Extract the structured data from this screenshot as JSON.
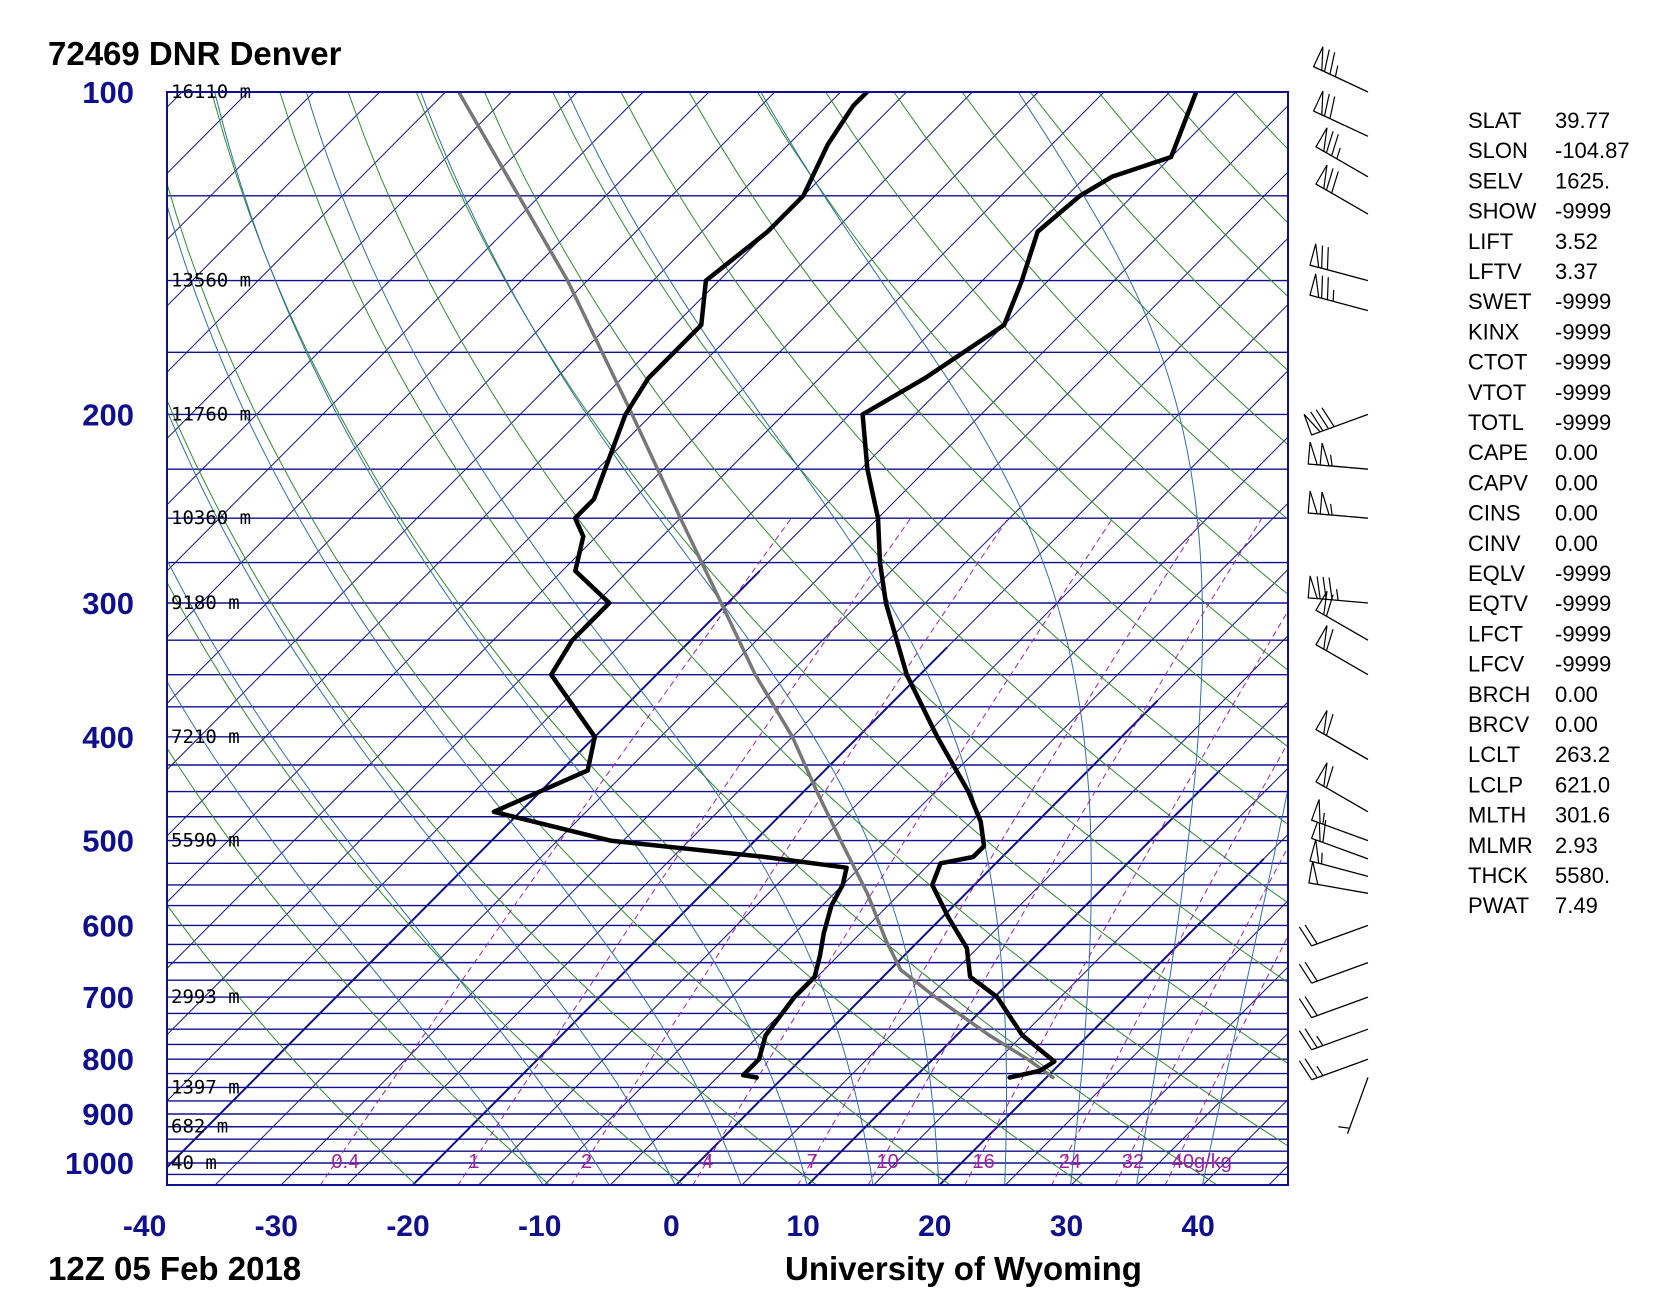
{
  "header": {
    "station": "72469 DNR Denver",
    "time": "12Z 05 Feb 2018",
    "source": "University of Wyoming"
  },
  "colors": {
    "isobar": "#10108c",
    "isotherm": "#10108c",
    "dry_adiabat": "#2e8b2e",
    "moist_adiabat": "#2f6fa8",
    "mixing_ratio": "#a020a0",
    "temperature": "#000000",
    "dewpoint": "#000000",
    "parcel": "#777777"
  },
  "chart_data": {
    "type": "skew-t log-p sounding",
    "title": "72469 DNR Denver",
    "subtitle": "12Z 05 Feb 2018",
    "xlim": [
      -40,
      45
    ],
    "ylim": [
      1050,
      100
    ],
    "y_scale": "log",
    "pressure_ticks": [
      100,
      200,
      300,
      400,
      500,
      600,
      700,
      800,
      900,
      1000
    ],
    "temperature_ticks": [
      -40,
      -30,
      -20,
      -10,
      0,
      10,
      20,
      30,
      40
    ],
    "height_labels": [
      {
        "p": 100,
        "label": "16110 m"
      },
      {
        "p": 150,
        "label": "13560 m"
      },
      {
        "p": 200,
        "label": "11760 m"
      },
      {
        "p": 250,
        "label": "10360 m"
      },
      {
        "p": 300,
        "label": "9180 m"
      },
      {
        "p": 400,
        "label": "7210 m"
      },
      {
        "p": 500,
        "label": "5590 m"
      },
      {
        "p": 700,
        "label": "2993 m"
      },
      {
        "p": 850,
        "label": "1397 m"
      },
      {
        "p": 925,
        "label": "682 m"
      },
      {
        "p": 1000,
        "label": "40 m"
      }
    ],
    "mixing_ratio_labels": [
      "0.4",
      "1",
      "2",
      "4",
      "7",
      "10",
      "16",
      "24",
      "32",
      "40g/kg"
    ],
    "mixing_ratio_values": [
      0.4,
      1,
      2,
      4,
      7,
      10,
      16,
      24,
      32,
      40
    ],
    "temperature_profile": [
      {
        "p": 832,
        "t": 17.2
      },
      {
        "p": 820,
        "t": 19.0
      },
      {
        "p": 804,
        "t": 19.4
      },
      {
        "p": 760,
        "t": 15.0
      },
      {
        "p": 700,
        "t": 10.2
      },
      {
        "p": 670,
        "t": 6.6
      },
      {
        "p": 630,
        "t": 4.2
      },
      {
        "p": 590,
        "t": 0.5
      },
      {
        "p": 550,
        "t": -3.2
      },
      {
        "p": 525,
        "t": -4.2
      },
      {
        "p": 518,
        "t": -2.2
      },
      {
        "p": 506,
        "t": -2.2
      },
      {
        "p": 480,
        "t": -4.3
      },
      {
        "p": 450,
        "t": -7.5
      },
      {
        "p": 400,
        "t": -14.0
      },
      {
        "p": 350,
        "t": -21.0
      },
      {
        "p": 300,
        "t": -28.0
      },
      {
        "p": 275,
        "t": -31.5
      },
      {
        "p": 250,
        "t": -35.0
      },
      {
        "p": 225,
        "t": -39.5
      },
      {
        "p": 200,
        "t": -44.0
      },
      {
        "p": 185,
        "t": -42.0
      },
      {
        "p": 170,
        "t": -40.5
      },
      {
        "p": 165,
        "t": -40.0
      },
      {
        "p": 150,
        "t": -42.0
      },
      {
        "p": 135,
        "t": -44.5
      },
      {
        "p": 125,
        "t": -44.0
      },
      {
        "p": 120,
        "t": -43.0
      },
      {
        "p": 115,
        "t": -40.0
      },
      {
        "p": 100,
        "t": -43.0
      }
    ],
    "dewpoint_profile": [
      {
        "p": 832,
        "t": -2.0
      },
      {
        "p": 828,
        "t": -3.2
      },
      {
        "p": 800,
        "t": -3.2
      },
      {
        "p": 760,
        "t": -4.5
      },
      {
        "p": 700,
        "t": -5.2
      },
      {
        "p": 670,
        "t": -5.2
      },
      {
        "p": 640,
        "t": -6.4
      },
      {
        "p": 610,
        "t": -7.8
      },
      {
        "p": 575,
        "t": -9.3
      },
      {
        "p": 550,
        "t": -10.0
      },
      {
        "p": 530,
        "t": -11.0
      },
      {
        "p": 518,
        "t": -18.0
      },
      {
        "p": 500,
        "t": -31.0
      },
      {
        "p": 470,
        "t": -42.0
      },
      {
        "p": 430,
        "t": -38.0
      },
      {
        "p": 400,
        "t": -40.0
      },
      {
        "p": 350,
        "t": -48.0
      },
      {
        "p": 325,
        "t": -49.0
      },
      {
        "p": 300,
        "t": -49.0
      },
      {
        "p": 280,
        "t": -54.0
      },
      {
        "p": 260,
        "t": -56.0
      },
      {
        "p": 250,
        "t": -58.0
      },
      {
        "p": 240,
        "t": -58.0
      },
      {
        "p": 200,
        "t": -62.0
      },
      {
        "p": 185,
        "t": -63.0
      },
      {
        "p": 175,
        "t": -63.0
      },
      {
        "p": 165,
        "t": -63.0
      },
      {
        "p": 150,
        "t": -66.0
      },
      {
        "p": 135,
        "t": -65.0
      },
      {
        "p": 125,
        "t": -65.0
      },
      {
        "p": 112,
        "t": -67.0
      },
      {
        "p": 103,
        "t": -68.0
      },
      {
        "p": 100,
        "t": -68.0
      }
    ],
    "parcel_profile": [
      {
        "p": 832,
        "t": 20.5
      },
      {
        "p": 800,
        "t": 17.2
      },
      {
        "p": 760,
        "t": 12.5
      },
      {
        "p": 700,
        "t": 5.5
      },
      {
        "p": 660,
        "t": 0.8
      },
      {
        "p": 620,
        "t": -2.5
      },
      {
        "p": 560,
        "t": -7.5
      },
      {
        "p": 500,
        "t": -13.5
      },
      {
        "p": 450,
        "t": -19.0
      },
      {
        "p": 400,
        "t": -25.0
      },
      {
        "p": 350,
        "t": -32.5
      },
      {
        "p": 300,
        "t": -40.5
      },
      {
        "p": 250,
        "t": -50.0
      },
      {
        "p": 200,
        "t": -61.5
      },
      {
        "p": 150,
        "t": -76.5
      },
      {
        "p": 100,
        "t": -99.0
      }
    ],
    "wind_barbs": [
      {
        "p": 832,
        "dir": 200,
        "spd": 5
      },
      {
        "p": 800,
        "dir": 250,
        "spd": 25
      },
      {
        "p": 750,
        "dir": 250,
        "spd": 25
      },
      {
        "p": 700,
        "dir": 250,
        "spd": 20
      },
      {
        "p": 650,
        "dir": 250,
        "spd": 20
      },
      {
        "p": 600,
        "dir": 250,
        "spd": 20
      },
      {
        "p": 560,
        "dir": 280,
        "spd": 50
      },
      {
        "p": 540,
        "dir": 285,
        "spd": 55
      },
      {
        "p": 520,
        "dir": 290,
        "spd": 60
      },
      {
        "p": 500,
        "dir": 290,
        "spd": 55
      },
      {
        "p": 470,
        "dir": 300,
        "spd": 60
      },
      {
        "p": 420,
        "dir": 300,
        "spd": 60
      },
      {
        "p": 350,
        "dir": 300,
        "spd": 60
      },
      {
        "p": 325,
        "dir": 300,
        "spd": 60
      },
      {
        "p": 300,
        "dir": 275,
        "spd": 85
      },
      {
        "p": 250,
        "dir": 275,
        "spd": 105
      },
      {
        "p": 225,
        "dir": 275,
        "spd": 105
      },
      {
        "p": 200,
        "dir": 250,
        "spd": 80
      },
      {
        "p": 160,
        "dir": 285,
        "spd": 75
      },
      {
        "p": 150,
        "dir": 285,
        "spd": 70
      },
      {
        "p": 130,
        "dir": 300,
        "spd": 70
      },
      {
        "p": 120,
        "dir": 300,
        "spd": 75
      },
      {
        "p": 110,
        "dir": 295,
        "spd": 70
      },
      {
        "p": 100,
        "dir": 295,
        "spd": 75
      }
    ]
  },
  "indices": [
    {
      "key": "SLAT",
      "value": "39.77"
    },
    {
      "key": "SLON",
      "value": "-104.87"
    },
    {
      "key": "SELV",
      "value": "1625."
    },
    {
      "key": "SHOW",
      "value": "-9999"
    },
    {
      "key": "LIFT",
      "value": "3.52"
    },
    {
      "key": "LFTV",
      "value": "3.37"
    },
    {
      "key": "SWET",
      "value": "-9999"
    },
    {
      "key": "KINX",
      "value": "-9999"
    },
    {
      "key": "CTOT",
      "value": "-9999"
    },
    {
      "key": "VTOT",
      "value": "-9999"
    },
    {
      "key": "TOTL",
      "value": "-9999"
    },
    {
      "key": "CAPE",
      "value": "0.00"
    },
    {
      "key": "CAPV",
      "value": "0.00"
    },
    {
      "key": "CINS",
      "value": "0.00"
    },
    {
      "key": "CINV",
      "value": "0.00"
    },
    {
      "key": "EQLV",
      "value": "-9999"
    },
    {
      "key": "EQTV",
      "value": "-9999"
    },
    {
      "key": "LFCT",
      "value": "-9999"
    },
    {
      "key": "LFCV",
      "value": "-9999"
    },
    {
      "key": "BRCH",
      "value": "0.00"
    },
    {
      "key": "BRCV",
      "value": "0.00"
    },
    {
      "key": "LCLT",
      "value": "263.2"
    },
    {
      "key": "LCLP",
      "value": "621.0"
    },
    {
      "key": "MLTH",
      "value": "301.6"
    },
    {
      "key": "MLMR",
      "value": "2.93"
    },
    {
      "key": "THCK",
      "value": "5580."
    },
    {
      "key": "PWAT",
      "value": "7.49"
    }
  ]
}
